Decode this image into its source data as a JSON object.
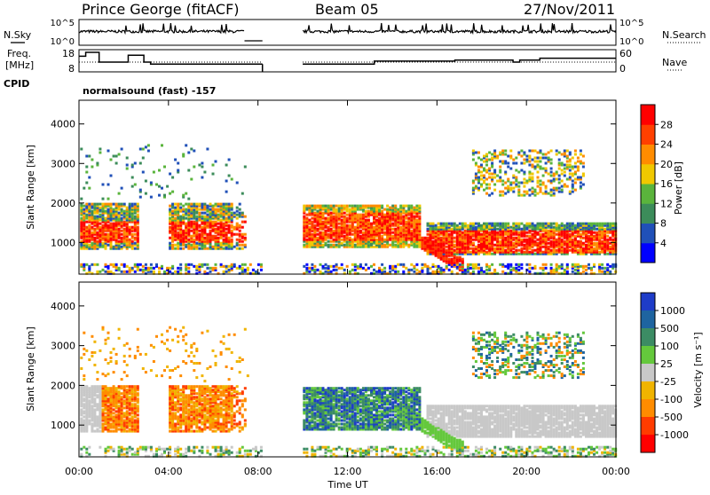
{
  "header": {
    "station": "Prince George (fitACF)",
    "beam": "Beam 05",
    "date": "27/Nov/2011"
  },
  "panels_top": {
    "nsky_label": "N.Sky",
    "nsky_ticks": [
      "10^5",
      "10^0"
    ],
    "nsearch_label": "N.Search",
    "nsearch_ticks": [
      "10^5",
      "10^0"
    ],
    "freq_label_1": "Freq.",
    "freq_label_2": "[MHz]",
    "freq_ticks": [
      "18",
      "8"
    ],
    "nave_label": "Nave",
    "nave_ticks": [
      "60",
      "0"
    ],
    "cpid_label": "CPID",
    "cpid_text": "normalsound (fast) -157"
  },
  "chart_data": [
    {
      "type": "heatmap",
      "name": "power",
      "ylabel": "Slant Range [km]",
      "yticks": [
        "1000",
        "2000",
        "3000",
        "4000"
      ],
      "ylim": [
        200,
        4600
      ],
      "xlim": [
        0,
        24
      ],
      "colorbar_label": "Power [dB]",
      "colorbar_ticks": [
        "28",
        "24",
        "20",
        "16",
        "12",
        "8",
        "4"
      ],
      "colorbar_colors": [
        "#0000ff",
        "#2050b8",
        "#3c8c5a",
        "#5ab43c",
        "#f0c800",
        "#ff8c00",
        "#ff4000",
        "#ff0000"
      ],
      "data_gap_hours": [
        8.2,
        10.0
      ]
    },
    {
      "type": "heatmap",
      "name": "velocity",
      "ylabel": "Slant Range [km]",
      "yticks": [
        "1000",
        "2000",
        "3000",
        "4000"
      ],
      "ylim": [
        200,
        4600
      ],
      "xlim": [
        0,
        24
      ],
      "colorbar_label": "Velocity [m s⁻¹]",
      "colorbar_ticks": [
        "1000",
        "500",
        "100",
        "25",
        "-25",
        "-100",
        "-500",
        "-1000"
      ],
      "colorbar_colors": [
        "#1e3cc8",
        "#1e64a0",
        "#3c8c64",
        "#64c83c",
        "#c8c8c8",
        "#f0b400",
        "#ff8c00",
        "#ff3c00",
        "#ff0000"
      ],
      "data_gap_hours": [
        8.2,
        10.0
      ]
    }
  ],
  "xaxis": {
    "ticks": [
      "00:00",
      "04:00",
      "08:00",
      "12:00",
      "16:00",
      "20:00",
      "00:00"
    ],
    "label": "Time UT"
  }
}
